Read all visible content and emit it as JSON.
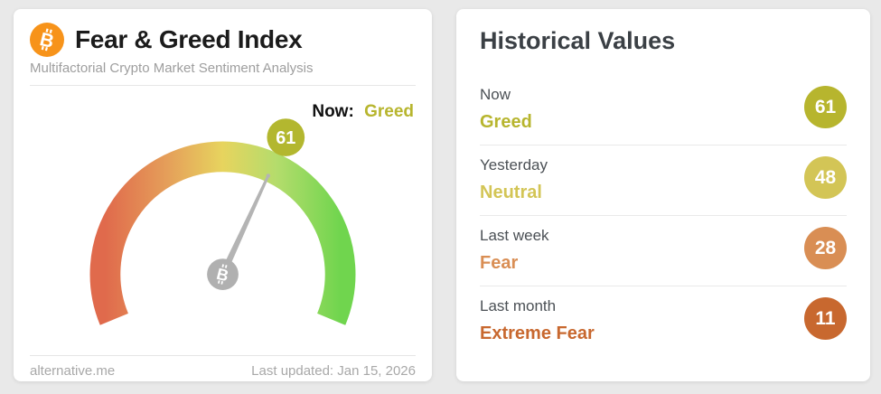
{
  "theme": {
    "page_bg": "#e9e9e9",
    "card_bg": "#ffffff",
    "divider": "#e6e6e6",
    "bitcoin_orange": "#f7931a",
    "needle_gray": "#b4b4b4",
    "hub_gray": "#b0b0b0"
  },
  "left_card": {
    "title": "Fear & Greed Index",
    "subtitle": "Multifactorial Crypto Market Sentiment Analysis",
    "now_label": "Now:",
    "now_value": "Greed",
    "now_value_color": "#b7b52e",
    "gauge": {
      "value": 61,
      "badge_color": "#b3b72f",
      "arc_colors": [
        "#e06a4c",
        "#e5a05a",
        "#e7d45e",
        "#b4dc6c",
        "#70d54e"
      ]
    },
    "footer": {
      "source": "alternative.me",
      "last_updated": "Last updated: Jan 15, 2026"
    }
  },
  "right_card": {
    "title": "Historical Values",
    "rows": [
      {
        "label": "Now",
        "classification": "Greed",
        "value": 61,
        "color": "#b7b52e"
      },
      {
        "label": "Yesterday",
        "classification": "Neutral",
        "value": 48,
        "color": "#d3c556"
      },
      {
        "label": "Last week",
        "classification": "Fear",
        "value": 28,
        "color": "#d98e54"
      },
      {
        "label": "Last month",
        "classification": "Extreme Fear",
        "value": 11,
        "color": "#c8682f"
      }
    ]
  },
  "chart_data": {
    "type": "gauge",
    "title": "Fear & Greed Index",
    "value": 61,
    "classification": "Greed",
    "range": [
      0,
      100
    ],
    "color_scale": [
      "#e06a4c",
      "#e7d45e",
      "#70d54e"
    ],
    "historical": [
      {
        "label": "Now",
        "value": 61,
        "classification": "Greed"
      },
      {
        "label": "Yesterday",
        "value": 48,
        "classification": "Neutral"
      },
      {
        "label": "Last week",
        "value": 28,
        "classification": "Fear"
      },
      {
        "label": "Last month",
        "value": 11,
        "classification": "Extreme Fear"
      }
    ]
  }
}
